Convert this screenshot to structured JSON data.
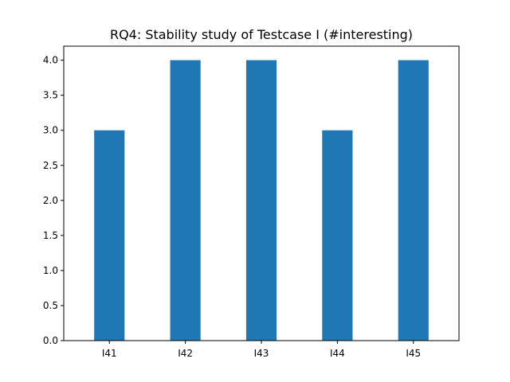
{
  "chart_data": {
    "type": "bar",
    "title": "RQ4: Stability study of Testcase I (#interesting)",
    "xlabel": "",
    "ylabel": "",
    "categories": [
      "I41",
      "I42",
      "I43",
      "I44",
      "I45"
    ],
    "values": [
      3,
      4,
      4,
      3,
      4
    ],
    "ylim": [
      0,
      4.2
    ],
    "yticks": [
      0.0,
      0.5,
      1.0,
      1.5,
      2.0,
      2.5,
      3.0,
      3.5,
      4.0
    ],
    "ytick_labels": [
      "0.0",
      "0.5",
      "1.0",
      "1.5",
      "2.0",
      "2.5",
      "3.0",
      "3.5",
      "4.0"
    ],
    "bar_color": "#1f77b4",
    "grid": false,
    "legend": "none"
  }
}
